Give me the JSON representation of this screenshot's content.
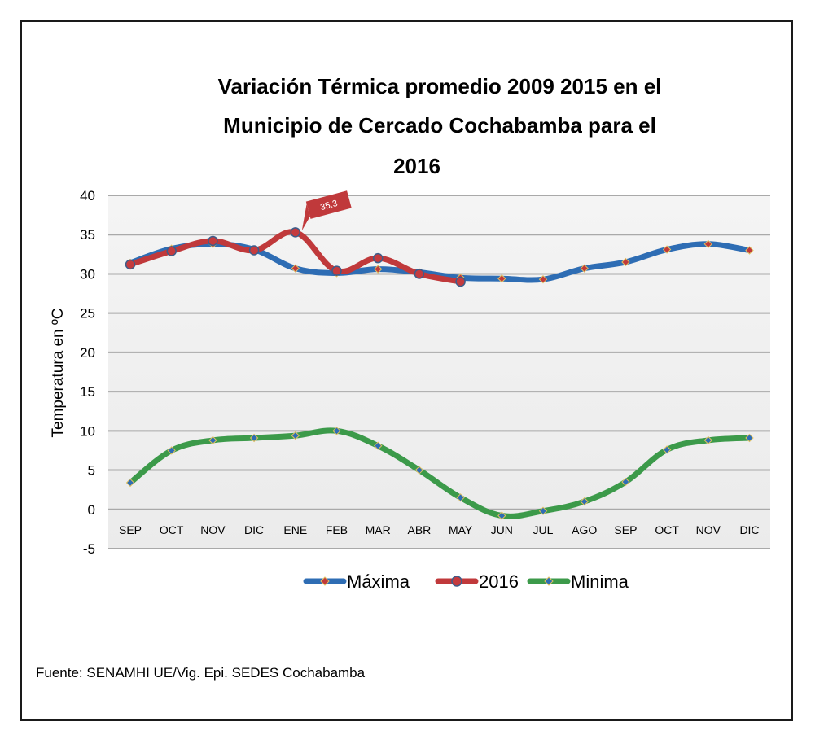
{
  "chart_data": {
    "type": "line",
    "title": "Variación Térmica promedio 2009  2015 en el Municipio de Cercado Cochabamba para el 2016",
    "title_lines": [
      "Variación Térmica promedio 2009  2015 en el",
      "Municipio de Cercado Cochabamba para el",
      "2016"
    ],
    "xlabel": "",
    "ylabel": "Temperatura en ºC",
    "ylim": [
      -5,
      40
    ],
    "yticks": [
      "40",
      "35",
      "30",
      "25",
      "20",
      "15",
      "10",
      "5",
      "0",
      "-5"
    ],
    "categories": [
      "SEP",
      "OCT",
      "NOV",
      "DIC",
      "ENE",
      "FEB",
      "MAR",
      "ABR",
      "MAY",
      "JUN",
      "JUL",
      "AGO",
      "SEP",
      "OCT",
      "NOV",
      "DIC"
    ],
    "grid": true,
    "legend_position": "bottom",
    "series": [
      {
        "name": "Máxima",
        "color": "#2e6db4",
        "values": [
          31.4,
          33.2,
          33.8,
          33.1,
          30.7,
          30.1,
          30.6,
          30.2,
          29.5,
          29.4,
          29.3,
          30.7,
          31.5,
          33.1,
          33.8,
          33.0
        ]
      },
      {
        "name": "2016",
        "color": "#c0393b",
        "values": [
          31.2,
          32.9,
          34.2,
          33.0,
          35.3,
          30.4,
          32.0,
          30.0,
          29.0,
          null,
          null,
          null,
          null,
          null,
          null,
          null
        ]
      },
      {
        "name": "Minima",
        "color": "#3c9a4a",
        "values": [
          3.4,
          7.5,
          8.8,
          9.1,
          9.4,
          10.0,
          8.1,
          5.0,
          1.5,
          -0.8,
          -0.2,
          1.0,
          3.5,
          7.6,
          8.8,
          9.1
        ]
      }
    ],
    "annotations": [
      {
        "text": "35,3",
        "series": "2016",
        "category_index": 4
      }
    ],
    "source": "Fuente: SENAMHI  UE/Vig. Epi.    SEDES Cochabamba"
  }
}
